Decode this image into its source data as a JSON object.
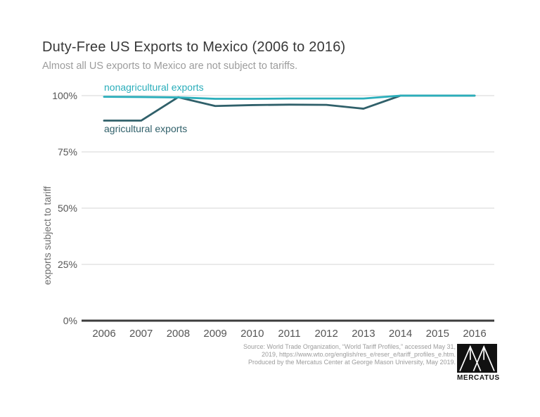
{
  "header": {
    "title": "Duty-Free US Exports to Mexico (2006 to 2016)",
    "subtitle": "Almost all US exports to Mexico are not subject to tariffs."
  },
  "chart_data": {
    "type": "line",
    "x": [
      2006,
      2007,
      2008,
      2009,
      2010,
      2011,
      2012,
      2013,
      2014,
      2015,
      2016
    ],
    "series": [
      {
        "name": "nonagricultural exports",
        "color": "#2aaebb",
        "values": [
          99.5,
          99.4,
          99.2,
          98.6,
          98.6,
          98.7,
          98.7,
          98.7,
          100,
          100,
          100
        ]
      },
      {
        "name": "agricultural exports",
        "color": "#30606a",
        "values": [
          88.9,
          88.9,
          99.3,
          95.4,
          95.8,
          96.0,
          95.9,
          94.2,
          100,
          100,
          100
        ]
      }
    ],
    "ylabel": "exports subject to tariff",
    "xlabel": "",
    "ylim": [
      0,
      100
    ],
    "yticks": [
      {
        "label": "100%",
        "value": 100
      },
      {
        "label": "75%",
        "value": 75
      },
      {
        "label": "50%",
        "value": 50
      },
      {
        "label": "25%",
        "value": 25
      },
      {
        "label": "0%",
        "value": 0
      }
    ],
    "grid": true,
    "legend_position": "inline-labels",
    "colors": {
      "grid": "#e3e3e3",
      "axis": "#3d3d3d"
    }
  },
  "source": {
    "lines": [
      "Source: World Trade Organization, “World Tariff Profiles,” accessed May 31,",
      "2019, https://www.wto.org/english/res_e/reser_e/tariff_profiles_e.htm.",
      "Produced by the Mercatus Center at George Mason University, May 2019."
    ]
  },
  "logo": {
    "name": "mercatus-logo",
    "text": "MERCATUS"
  }
}
